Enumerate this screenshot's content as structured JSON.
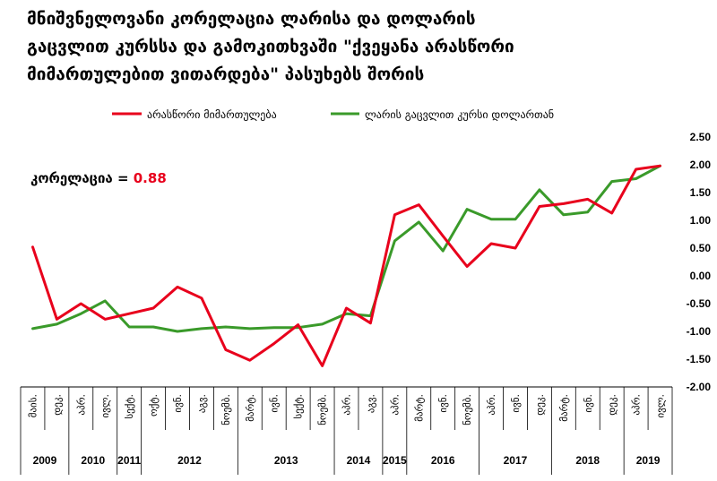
{
  "title_lines": [
    "მნიშვნელოვანი კორელაცია ლარისა და დოლარის",
    "გაცვლით კურსსა და გამოკითხვაში \"ქვეყანა არასწორი",
    "მიმართულებით ვითარდება\" პასუხებს შორის"
  ],
  "correlation": {
    "label": "კორელაცია = ",
    "value": "0.88",
    "value_color": "#e8001c"
  },
  "chart_data": {
    "type": "line",
    "legend_position": "top",
    "grid": false,
    "ylim": [
      -2.0,
      2.5
    ],
    "yticks": [
      "2.50",
      "2.00",
      "1.50",
      "1.00",
      "0.50",
      "0.00",
      "-0.50",
      "-1.00",
      "-1.50",
      "-2.00"
    ],
    "x_labels": [
      "მაის.",
      "დეკ.",
      "აპრ.",
      "ივლ.",
      "სექტ.",
      "ოქტ.",
      "ივნ.",
      "აგვ.",
      "ნოემბ.",
      "მარტ.",
      "ივნ.",
      "სექტ.",
      "ნოემბ.",
      "აპრ.",
      "აგვ.",
      "აპრ.",
      "მარტ.",
      "ივნ.",
      "ნოემბ.",
      "აპრ.",
      "ივნ.",
      "დეკ.",
      "მარტ.",
      "ივნ.",
      "დეკ.",
      "აპრ.",
      "ივლ."
    ],
    "years": [
      {
        "label": "2009",
        "start": 0,
        "end": 1
      },
      {
        "label": "2010",
        "start": 2,
        "end": 3
      },
      {
        "label": "2011",
        "start": 4,
        "end": 4
      },
      {
        "label": "2012",
        "start": 5,
        "end": 8
      },
      {
        "label": "2013",
        "start": 9,
        "end": 12
      },
      {
        "label": "2014",
        "start": 13,
        "end": 14
      },
      {
        "label": "2015",
        "start": 15,
        "end": 15
      },
      {
        "label": "2016",
        "start": 16,
        "end": 18
      },
      {
        "label": "2017",
        "start": 19,
        "end": 21
      },
      {
        "label": "2018",
        "start": 22,
        "end": 24
      },
      {
        "label": "2019",
        "start": 25,
        "end": 26
      }
    ],
    "series": [
      {
        "name": "არასწორი მიმართულება",
        "color": "#e8001c",
        "values": [
          0.52,
          -0.78,
          -0.5,
          -0.78,
          -0.68,
          -0.58,
          -0.2,
          -0.4,
          -1.33,
          -1.52,
          -1.22,
          -0.88,
          -1.62,
          -0.58,
          -0.85,
          1.1,
          1.28,
          0.72,
          0.17,
          0.58,
          0.5,
          1.25,
          1.3,
          1.38,
          1.13,
          1.92,
          1.98
        ]
      },
      {
        "name": "ლარის გაცვლით კურსი დოლართან",
        "color": "#3a9a2a",
        "values": [
          -0.95,
          -0.87,
          -0.68,
          -0.45,
          -0.92,
          -0.92,
          -1.0,
          -0.95,
          -0.92,
          -0.95,
          -0.93,
          -0.93,
          -0.87,
          -0.68,
          -0.72,
          0.63,
          0.97,
          0.45,
          1.2,
          1.02,
          1.02,
          1.55,
          1.1,
          1.15,
          1.7,
          1.75,
          1.98
        ]
      }
    ]
  }
}
